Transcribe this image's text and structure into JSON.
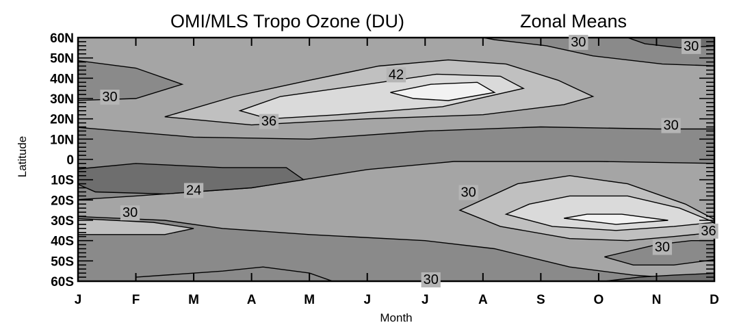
{
  "chart_data": {
    "type": "heatmap",
    "title": "OMI/MLS Tropo Ozone (DU)",
    "subtitle": "Zonal Means",
    "xlabel": "Month",
    "ylabel": "Latitude",
    "x_ticks": [
      "J",
      "F",
      "M",
      "A",
      "M",
      "J",
      "J",
      "A",
      "S",
      "O",
      "N",
      "D"
    ],
    "y_ticks": [
      "60N",
      "50N",
      "40N",
      "30N",
      "20N",
      "10N",
      "0",
      "10S",
      "20S",
      "30S",
      "40S",
      "50S",
      "60S"
    ],
    "xlim": [
      0,
      11
    ],
    "ylim": [
      -60,
      60
    ],
    "color_scale": [
      "#6e6e6e",
      "#8a8a8a",
      "#a5a5a5",
      "#c0c0c0",
      "#dadada",
      "#f2f2f2"
    ],
    "contour_labels": [
      {
        "text": "30",
        "x": 0.55,
        "y": 31
      },
      {
        "text": "36",
        "x": 3.3,
        "y": 19
      },
      {
        "text": "42",
        "x": 5.5,
        "y": 42
      },
      {
        "text": "30",
        "x": 8.65,
        "y": 58
      },
      {
        "text": "30",
        "x": 10.6,
        "y": 56
      },
      {
        "text": "30",
        "x": 10.25,
        "y": 17
      },
      {
        "text": "24",
        "x": 2.0,
        "y": -15
      },
      {
        "text": "30",
        "x": 0.9,
        "y": -26
      },
      {
        "text": "30",
        "x": 6.75,
        "y": -16
      },
      {
        "text": "36",
        "x": 10.9,
        "y": -35
      },
      {
        "text": "30",
        "x": 10.1,
        "y": -43
      },
      {
        "text": "30",
        "x": 6.1,
        "y": -59
      }
    ]
  }
}
